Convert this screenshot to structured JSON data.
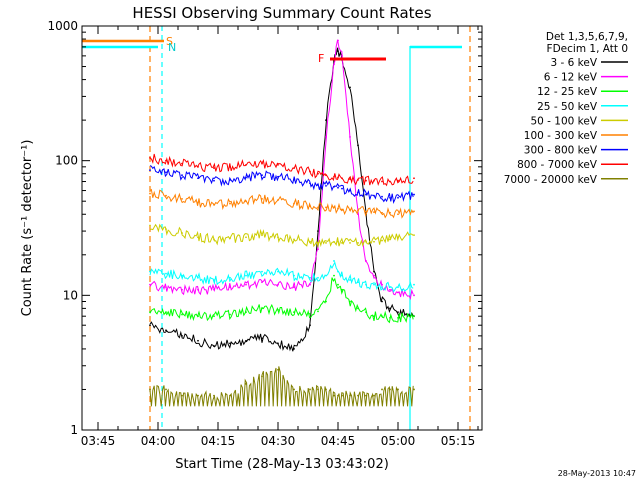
{
  "chart_data": {
    "type": "line",
    "title": "HESSI Observing Summary Count Rates",
    "xlabel": "Start Time (28-May-13 03:43:02)",
    "ylabel": "Count Rate (s⁻¹ detector⁻¹)",
    "yscale": "log",
    "ylim": [
      1,
      1000
    ],
    "xlim": [
      "03:41",
      "05:21"
    ],
    "x_ticks": [
      "03:45",
      "04:00",
      "04:15",
      "04:30",
      "04:45",
      "05:00",
      "05:15"
    ],
    "y_ticks": [
      "1",
      "10",
      "100",
      "1000"
    ],
    "legend_header": [
      "Det 1,3,5,6,7,9,",
      "FDecim 1, Att 0"
    ],
    "legend_position": "right",
    "x": [
      "03:58",
      "04:02",
      "04:06",
      "04:10",
      "04:14",
      "04:18",
      "04:22",
      "04:26",
      "04:30",
      "04:34",
      "04:38",
      "04:40",
      "04:42",
      "04:44",
      "04:45",
      "04:46",
      "04:48",
      "04:50",
      "04:52",
      "04:54",
      "04:56",
      "04:58",
      "05:00",
      "05:04"
    ],
    "series": [
      {
        "name": "3 - 6 keV",
        "color": "#000000",
        "values": [
          6,
          5.5,
          5,
          4.6,
          4.2,
          4.4,
          4.6,
          4.8,
          4.4,
          4,
          6,
          30,
          200,
          550,
          650,
          560,
          350,
          130,
          40,
          15,
          9,
          8,
          7.5,
          7
        ]
      },
      {
        "name": "6 - 12 keV",
        "color": "#ff00ff",
        "values": [
          12,
          11.5,
          11,
          11,
          11,
          11.5,
          12,
          12.5,
          12,
          11.5,
          12,
          22,
          150,
          520,
          780,
          600,
          150,
          40,
          18,
          14,
          12,
          11,
          10.5,
          10
        ]
      },
      {
        "name": "12 - 25 keV",
        "color": "#00ff00",
        "values": [
          7.5,
          7.5,
          7.2,
          7,
          7,
          7.2,
          7.5,
          8,
          7.8,
          7.5,
          7.3,
          7.6,
          9,
          14,
          12,
          11,
          9,
          8,
          7.5,
          7,
          7,
          6.8,
          6.8,
          7
        ]
      },
      {
        "name": "25 - 50 keV",
        "color": "#00ffff",
        "values": [
          15,
          14.5,
          14,
          13.5,
          13,
          13.5,
          14,
          15,
          15,
          14,
          13.5,
          13.5,
          14,
          18,
          15,
          14,
          13,
          12.5,
          12,
          12,
          11.5,
          11.5,
          11.5,
          12
        ]
      },
      {
        "name": "50 - 100 keV",
        "color": "#cccc00",
        "values": [
          33,
          31,
          29,
          27,
          26,
          26.5,
          27,
          28,
          27,
          26,
          25,
          24.5,
          24.5,
          25,
          25,
          24.5,
          24.5,
          24.5,
          25,
          25,
          25.5,
          26,
          27,
          28
        ]
      },
      {
        "name": "100 - 300 keV",
        "color": "#ff8000",
        "values": [
          57,
          55,
          52,
          49,
          47,
          48,
          50,
          52,
          51,
          48,
          46,
          45,
          45,
          45,
          44,
          43.5,
          43,
          42.5,
          42,
          41.5,
          41,
          41,
          40,
          42
        ]
      },
      {
        "name": "300 - 800 keV",
        "color": "#0000ff",
        "values": [
          85,
          82,
          78,
          74,
          71,
          72,
          75,
          78,
          76,
          72,
          68,
          66,
          65,
          64,
          63,
          62,
          60,
          58,
          56,
          55,
          54,
          53,
          53,
          56
        ]
      },
      {
        "name": "800 - 7000 keV",
        "color": "#ff0000",
        "values": [
          105,
          100,
          95,
          90,
          88,
          90,
          93,
          95,
          93,
          88,
          83,
          80,
          78,
          76,
          75,
          74,
          73,
          72,
          71,
          71,
          70,
          70,
          71,
          74
        ]
      },
      {
        "name": "7000 - 20000 keV",
        "color": "#808000",
        "values": [
          2,
          2,
          1.8,
          1.8,
          1.8,
          1.8,
          2.2,
          2.5,
          2.8,
          2,
          2,
          2,
          2,
          1.8,
          1.8,
          1.8,
          1.8,
          1.8,
          1.8,
          1.8,
          2,
          2,
          2,
          2
        ]
      }
    ],
    "annotations": {
      "saa_label": "S",
      "night_label": "N",
      "flare_label": "F"
    },
    "timestamp": "28-May-2013 10:47"
  }
}
